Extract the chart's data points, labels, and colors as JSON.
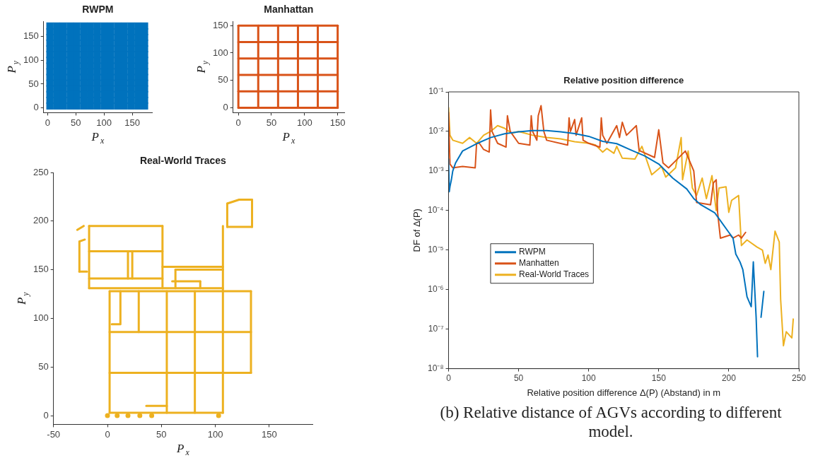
{
  "chart_data": [
    {
      "type": "scatter",
      "title": "RWPM",
      "xlabel": "P$_{x}$",
      "ylabel": "P$_{y}$",
      "xlim": [
        -7,
        185
      ],
      "ylim": [
        -10,
        182
      ],
      "xticks": [
        0,
        50,
        100,
        150
      ],
      "yticks": [
        0,
        50,
        100,
        150
      ],
      "grid": false,
      "marker": "square",
      "series": [
        {
          "color": "#0072bd",
          "x": [
            4,
            16,
            28,
            40,
            52,
            64,
            76,
            88,
            100,
            112,
            124,
            136,
            148,
            160,
            172
          ],
          "values": [
            4,
            4,
            4,
            4,
            4,
            4,
            4,
            4,
            4,
            4,
            4,
            4,
            4,
            4,
            4
          ]
        },
        {
          "color": "#0072bd",
          "x": [
            4,
            16,
            28,
            40,
            52,
            64,
            76,
            88,
            100,
            112,
            124,
            136,
            148,
            160,
            172
          ],
          "values": [
            16,
            16,
            16,
            16,
            16,
            16,
            16,
            16,
            16,
            16,
            16,
            16,
            16,
            16,
            16
          ]
        },
        {
          "color": "#0072bd",
          "x": [
            4,
            16,
            28,
            40,
            52,
            64,
            76,
            88,
            100,
            112,
            124,
            136,
            148,
            160,
            172
          ],
          "values": [
            28,
            28,
            28,
            28,
            28,
            28,
            28,
            28,
            28,
            28,
            28,
            28,
            28,
            28,
            28
          ]
        },
        {
          "color": "#0072bd",
          "x": [
            4,
            16,
            28,
            40,
            52,
            64,
            76,
            88,
            100,
            112,
            124,
            136,
            148,
            160,
            172
          ],
          "values": [
            40,
            40,
            40,
            40,
            40,
            40,
            40,
            40,
            40,
            40,
            40,
            40,
            40,
            40,
            40
          ]
        },
        {
          "color": "#0072bd",
          "x": [
            4,
            16,
            28,
            40,
            52,
            64,
            76,
            88,
            100,
            112,
            124,
            136,
            148,
            160,
            172
          ],
          "values": [
            52,
            52,
            52,
            52,
            52,
            52,
            52,
            52,
            52,
            52,
            52,
            52,
            52,
            52,
            52
          ]
        },
        {
          "color": "#0072bd",
          "x": [
            4,
            16,
            28,
            40,
            52,
            64,
            76,
            88,
            100,
            112,
            124,
            136,
            148,
            160,
            172
          ],
          "values": [
            64,
            64,
            64,
            64,
            64,
            64,
            64,
            64,
            64,
            64,
            64,
            64,
            64,
            64,
            64
          ]
        },
        {
          "color": "#0072bd",
          "x": [
            4,
            16,
            28,
            40,
            52,
            64,
            76,
            88,
            100,
            112,
            124,
            136,
            148,
            160,
            172
          ],
          "values": [
            76,
            76,
            76,
            76,
            76,
            76,
            76,
            76,
            76,
            76,
            76,
            76,
            76,
            76,
            76
          ]
        },
        {
          "color": "#0072bd",
          "x": [
            4,
            16,
            28,
            40,
            52,
            64,
            76,
            88,
            100,
            112,
            124,
            136,
            148,
            160,
            172
          ],
          "values": [
            88,
            88,
            88,
            88,
            88,
            88,
            88,
            88,
            88,
            88,
            88,
            88,
            88,
            88,
            88
          ]
        },
        {
          "color": "#0072bd",
          "x": [
            4,
            16,
            28,
            40,
            52,
            64,
            76,
            88,
            100,
            112,
            124,
            136,
            148,
            160,
            172
          ],
          "values": [
            100,
            100,
            100,
            100,
            100,
            100,
            100,
            100,
            100,
            100,
            100,
            100,
            100,
            100,
            100
          ]
        },
        {
          "color": "#0072bd",
          "x": [
            4,
            16,
            28,
            40,
            52,
            64,
            76,
            88,
            100,
            112,
            124,
            136,
            148,
            160,
            172
          ],
          "values": [
            112,
            112,
            112,
            112,
            112,
            112,
            112,
            112,
            112,
            112,
            112,
            112,
            112,
            112,
            112
          ]
        },
        {
          "color": "#0072bd",
          "x": [
            4,
            16,
            28,
            40,
            52,
            64,
            76,
            88,
            100,
            112,
            124,
            136,
            148,
            160,
            172
          ],
          "values": [
            124,
            124,
            124,
            124,
            124,
            124,
            124,
            124,
            124,
            124,
            124,
            124,
            124,
            124,
            124
          ]
        },
        {
          "color": "#0072bd",
          "x": [
            4,
            16,
            28,
            40,
            52,
            64,
            76,
            88,
            100,
            112,
            124,
            136,
            148,
            160,
            172
          ],
          "values": [
            136,
            136,
            136,
            136,
            136,
            136,
            136,
            136,
            136,
            136,
            136,
            136,
            136,
            136,
            136
          ]
        },
        {
          "color": "#0072bd",
          "x": [
            4,
            16,
            28,
            40,
            52,
            64,
            76,
            88,
            100,
            112,
            124,
            136,
            148,
            160,
            172
          ],
          "values": [
            148,
            148,
            148,
            148,
            148,
            148,
            148,
            148,
            148,
            148,
            148,
            148,
            148,
            148,
            148
          ]
        },
        {
          "color": "#0072bd",
          "x": [
            4,
            16,
            28,
            40,
            52,
            64,
            76,
            88,
            100,
            112,
            124,
            136,
            148,
            160,
            172
          ],
          "values": [
            160,
            160,
            160,
            160,
            160,
            160,
            160,
            160,
            160,
            160,
            160,
            160,
            160,
            160,
            160
          ]
        },
        {
          "color": "#0072bd",
          "x": [
            4,
            16,
            28,
            40,
            52,
            64,
            76,
            88,
            100,
            112,
            124,
            136,
            148,
            160,
            172
          ],
          "values": [
            172,
            172,
            172,
            172,
            172,
            172,
            172,
            172,
            172,
            172,
            172,
            172,
            172,
            172,
            172
          ]
        }
      ]
    },
    {
      "type": "line",
      "title": "Manhattan",
      "xlabel": "P$_{x}$",
      "ylabel": "P$_{y}$",
      "xlim": [
        -8,
        160
      ],
      "ylim": [
        -9,
        158
      ],
      "xticks": [
        0,
        50,
        100,
        150
      ],
      "yticks": [
        0,
        50,
        100,
        150
      ],
      "grid": false,
      "series": [
        {
          "color": "#d95319",
          "x": [
            0,
            150
          ],
          "values": [
            0,
            0
          ]
        },
        {
          "color": "#d95319",
          "x": [
            0,
            150
          ],
          "values": [
            30,
            30
          ]
        },
        {
          "color": "#d95319",
          "x": [
            0,
            150
          ],
          "values": [
            60,
            60
          ]
        },
        {
          "color": "#d95319",
          "x": [
            0,
            150
          ],
          "values": [
            90,
            90
          ]
        },
        {
          "color": "#d95319",
          "x": [
            0,
            150
          ],
          "values": [
            120,
            120
          ]
        },
        {
          "color": "#d95319",
          "x": [
            0,
            150
          ],
          "values": [
            150,
            150
          ]
        },
        {
          "color": "#d95319",
          "x": [
            0,
            0
          ],
          "values": [
            0,
            150
          ]
        },
        {
          "color": "#d95319",
          "x": [
            30,
            30
          ],
          "values": [
            0,
            150
          ]
        },
        {
          "color": "#d95319",
          "x": [
            60,
            60
          ],
          "values": [
            0,
            150
          ]
        },
        {
          "color": "#d95319",
          "x": [
            90,
            90
          ],
          "values": [
            0,
            150
          ]
        },
        {
          "color": "#d95319",
          "x": [
            120,
            120
          ],
          "values": [
            0,
            150
          ]
        },
        {
          "color": "#d95319",
          "x": [
            150,
            150
          ],
          "values": [
            0,
            150
          ]
        }
      ]
    },
    {
      "type": "line",
      "title": "Real-World Traces",
      "xlabel": "P$_{x}$",
      "ylabel": "P$_{y}$",
      "xlim": [
        -50,
        190
      ],
      "ylim": [
        -9,
        250
      ],
      "xticks": [
        -50,
        0,
        50,
        100,
        150
      ],
      "yticks": [
        0,
        50,
        100,
        150,
        200,
        250
      ],
      "grid": false,
      "series": [
        {
          "color": "#edb120",
          "x": [
            2,
            107
          ],
          "values": [
            3,
            3
          ]
        },
        {
          "color": "#edb120",
          "x": [
            2,
            133
          ],
          "values": [
            44,
            44
          ]
        },
        {
          "color": "#edb120",
          "x": [
            2,
            133
          ],
          "values": [
            86,
            86
          ]
        },
        {
          "color": "#edb120",
          "x": [
            2,
            133
          ],
          "values": [
            128,
            128
          ]
        },
        {
          "color": "#edb120",
          "x": [
            2,
            2
          ],
          "values": [
            3,
            128
          ]
        },
        {
          "color": "#edb120",
          "x": [
            55,
            55
          ],
          "values": [
            3,
            128
          ]
        },
        {
          "color": "#edb120",
          "x": [
            81,
            81
          ],
          "values": [
            3,
            128
          ]
        },
        {
          "color": "#edb120",
          "x": [
            107,
            107
          ],
          "values": [
            3,
            195
          ]
        },
        {
          "color": "#edb120",
          "x": [
            133,
            133
          ],
          "values": [
            44,
            128
          ]
        },
        {
          "color": "#edb120",
          "x": [
            29,
            29
          ],
          "values": [
            86,
            128
          ]
        },
        {
          "color": "#edb120",
          "x": [
            4,
            12,
            12
          ],
          "values": [
            94,
            94,
            128
          ]
        },
        {
          "color": "#edb120",
          "x": [
            36,
            55
          ],
          "values": [
            10,
            10
          ]
        },
        {
          "color": "#edb120",
          "x": [
            -17,
            51
          ],
          "values": [
            195,
            195
          ]
        },
        {
          "color": "#edb120",
          "x": [
            -17,
            -17
          ],
          "values": [
            131,
            195
          ]
        },
        {
          "color": "#edb120",
          "x": [
            51,
            51
          ],
          "values": [
            131,
            195
          ]
        },
        {
          "color": "#edb120",
          "x": [
            -17,
            107
          ],
          "values": [
            131,
            131
          ]
        },
        {
          "color": "#edb120",
          "x": [
            -17,
            51
          ],
          "values": [
            169,
            169
          ]
        },
        {
          "color": "#edb120",
          "x": [
            -17,
            51
          ],
          "values": [
            141,
            141
          ]
        },
        {
          "color": "#edb120",
          "x": [
            19,
            19
          ],
          "values": [
            141,
            169
          ]
        },
        {
          "color": "#edb120",
          "x": [
            23,
            23
          ],
          "values": [
            141,
            169
          ]
        },
        {
          "color": "#edb120",
          "x": [
            -26,
            -19
          ],
          "values": [
            148,
            148
          ]
        },
        {
          "color": "#edb120",
          "x": [
            -26,
            -26
          ],
          "values": [
            148,
            179
          ]
        },
        {
          "color": "#edb120",
          "x": [
            -26,
            -21
          ],
          "values": [
            179,
            181
          ]
        },
        {
          "color": "#edb120",
          "x": [
            -28,
            -22
          ],
          "values": [
            191,
            195
          ]
        },
        {
          "color": "#edb120",
          "x": [
            51,
            107
          ],
          "values": [
            153,
            153
          ]
        },
        {
          "color": "#edb120",
          "x": [
            63,
            107
          ],
          "values": [
            150,
            150
          ]
        },
        {
          "color": "#edb120",
          "x": [
            63,
            63
          ],
          "values": [
            131,
            150
          ]
        },
        {
          "color": "#edb120",
          "x": [
            60,
            86
          ],
          "values": [
            138,
            138
          ]
        },
        {
          "color": "#edb120",
          "x": [
            86,
            86
          ],
          "values": [
            131,
            138
          ]
        },
        {
          "color": "#edb120",
          "x": [
            111,
            111
          ],
          "values": [
            194,
            218
          ]
        },
        {
          "color": "#edb120",
          "x": [
            111,
            122,
            134
          ],
          "values": [
            218,
            222,
            222
          ]
        },
        {
          "color": "#edb120",
          "x": [
            134,
            134
          ],
          "values": [
            194,
            222
          ]
        },
        {
          "color": "#edb120",
          "x": [
            111,
            134
          ],
          "values": [
            194,
            194
          ]
        },
        {
          "type": "scatter",
          "marker": "circle",
          "color": "#edb120",
          "x": [
            0,
            9,
            19,
            30,
            41,
            103
          ],
          "values": [
            0,
            0,
            0,
            0,
            0,
            0
          ]
        }
      ]
    },
    {
      "type": "line",
      "title": "Relative position difference",
      "xlabel": "Relative position difference Δ(P) (Abstand) in m",
      "ylabel": "DF of Δ(P)",
      "log": "y",
      "xlim": [
        0,
        250
      ],
      "ylim": [
        1e-08,
        0.1
      ],
      "xticks": [
        0,
        50,
        100,
        150,
        200,
        250
      ],
      "yticks": [
        {
          "value": 1e-08,
          "label": "10⁻⁸"
        },
        {
          "value": 1e-07,
          "label": "10⁻⁷"
        },
        {
          "value": 1e-06,
          "label": "10⁻⁶"
        },
        {
          "value": 1e-05,
          "label": "10⁻⁵"
        },
        {
          "value": 0.0001,
          "label": "10⁻⁴"
        },
        {
          "value": 0.001,
          "label": "10⁻³"
        },
        {
          "value": 0.01,
          "label": "10⁻²"
        },
        {
          "value": 0.1,
          "label": "10⁻¹"
        }
      ],
      "grid": false,
      "legend": "center",
      "annotations": [
        "(b) Relative distance of AGVs according to different model."
      ],
      "series": [
        {
          "name": "RWPM",
          "color": "#0072bd",
          "x": [
            0,
            0.5,
            1,
            2,
            3,
            5,
            10,
            20,
            30,
            40,
            50,
            60,
            70,
            80,
            90,
            100,
            110,
            120,
            130,
            140,
            150,
            160,
            170,
            175,
            180,
            190,
            200,
            203,
            205,
            208,
            210,
            213,
            216,
            217.5,
            218.5,
            219.5,
            220.5,
            222,
            223,
            225
          ],
          "values": [
            0.002,
            0.0003,
            0.0004,
            0.0006,
            0.001,
            0.0016,
            0.0032,
            0.0049,
            0.007,
            0.0087,
            0.0098,
            0.0105,
            0.0105,
            0.0098,
            0.0088,
            0.0075,
            0.0056,
            0.0049,
            0.0034,
            0.0024,
            0.0015,
            0.00066,
            0.00035,
            0.0002,
            0.00014,
            8.7e-05,
            2.8e-05,
            2e-05,
            7.9e-06,
            5e-06,
            3.2e-06,
            6.6e-07,
            3.7e-07,
            5e-06,
            1e-06,
            2e-07,
            2e-08,
            null,
            2e-07,
            9e-07
          ]
        },
        {
          "name": "Manhatten",
          "color": "#d95319",
          "x": [
            0,
            1,
            3,
            10,
            19,
            20,
            22,
            25,
            29,
            30,
            31,
            35,
            41,
            42,
            44,
            50,
            58,
            59,
            60,
            63,
            64,
            66,
            68,
            70,
            85,
            86,
            87,
            90,
            91,
            95,
            96,
            100,
            108,
            109,
            110,
            113,
            120,
            122,
            124,
            127,
            134,
            136,
            147,
            150,
            153,
            157,
            162,
            169,
            175,
            177,
            187,
            189,
            191,
            192,
            194,
            201,
            203,
            207,
            209,
            212
          ],
          "values": [
            0.03,
            0.0015,
            0.0012,
            0.0013,
            0.0012,
            0.005,
            0.005,
            0.0035,
            0.003,
            0.035,
            0.01,
            0.005,
            0.004,
            0.025,
            0.01,
            0.005,
            0.0045,
            0.025,
            0.01,
            0.006,
            0.025,
            0.045,
            0.01,
            0.006,
            0.0045,
            0.022,
            0.01,
            0.02,
            0.008,
            0.022,
            0.006,
            0.005,
            0.004,
            0.022,
            0.008,
            0.005,
            0.014,
            0.007,
            0.017,
            0.008,
            0.014,
            0.0033,
            0.0022,
            0.011,
            0.0016,
            0.0012,
            0.0018,
            0.0032,
            0.001,
            0.00016,
            0.00014,
            0.0005,
            0.0006,
            9e-05,
            2e-05,
            2.4e-05,
            2e-05,
            2.4e-05,
            2e-05,
            2.8e-05
          ]
        },
        {
          "name": "Real-World Traces",
          "color": "#edb120",
          "x": [
            0,
            1,
            3,
            10,
            15,
            20,
            25,
            30,
            35,
            40,
            45,
            50,
            60,
            70,
            80,
            90,
            100,
            105,
            110,
            113,
            118,
            120,
            124,
            133,
            138,
            145,
            152,
            155,
            162,
            166,
            167,
            171,
            174,
            177,
            181,
            184,
            188,
            191,
            193,
            198,
            200,
            202,
            207,
            209,
            213,
            220,
            224,
            226,
            228,
            230,
            233,
            236,
            237,
            239,
            241,
            245,
            246
          ],
          "values": [
            0.04,
            0.008,
            0.006,
            0.005,
            0.007,
            0.005,
            0.008,
            0.01,
            0.014,
            0.012,
            0.009,
            0.01,
            0.008,
            0.007,
            0.0065,
            0.0055,
            0.005,
            0.0045,
            0.003,
            0.0037,
            0.0028,
            0.0042,
            0.0021,
            0.002,
            0.0042,
            0.0008,
            0.0013,
            0.0007,
            0.0012,
            0.007,
            0.0006,
            0.0032,
            0.00037,
            0.00024,
            0.00066,
            0.0002,
            0.00076,
            0.0001,
            0.00037,
            0.0004,
            9e-05,
            0.00018,
            0.00024,
            1.3e-05,
            1.8e-05,
            1.2e-05,
            1e-05,
            4.6e-06,
            7.5e-06,
            3.2e-06,
            3e-05,
            1.6e-05,
            5.6e-07,
            3.8e-08,
            8.6e-08,
            6e-08,
            1.8e-07
          ]
        }
      ]
    }
  ]
}
